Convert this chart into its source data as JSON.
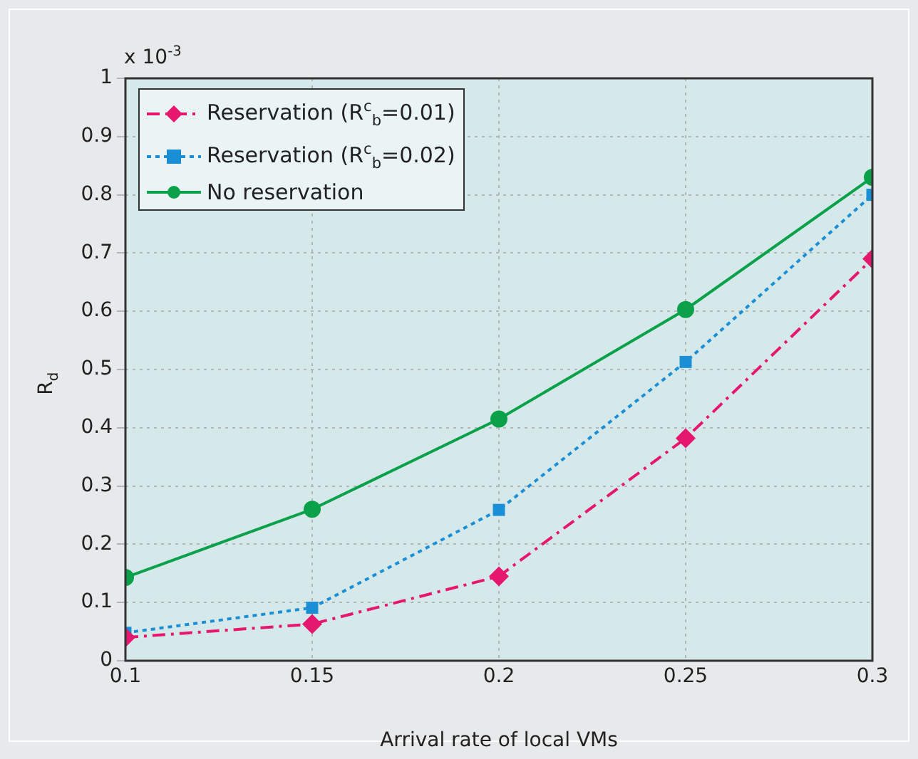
{
  "chart_data": {
    "type": "line",
    "xlabel": "Arrival rate of local VMs",
    "ylabel": "R$_{d}$",
    "annotations": [
      "x 10$^{-3}$"
    ],
    "x": [
      0.1,
      0.15,
      0.2,
      0.25,
      0.3
    ],
    "series": [
      {
        "name": "Reservation (R$^{c}$$_{b}$=0.01)",
        "color": "#e6176f",
        "marker": "diamond",
        "line_style": "dashed",
        "values": [
          0.04,
          0.063,
          0.145,
          0.382,
          0.69
        ]
      },
      {
        "name": "Reservation (R$^{c}$$_{b}$=0.02)",
        "color": "#1a8fd6",
        "marker": "square",
        "line_style": "dotted",
        "values": [
          0.048,
          0.091,
          0.259,
          0.513,
          0.8
        ]
      },
      {
        "name": "No reservation",
        "color": "#0aa14a",
        "marker": "circle",
        "line_style": "solid",
        "values": [
          0.143,
          0.26,
          0.415,
          0.603,
          0.83
        ]
      }
    ],
    "xlim": [
      0.1,
      0.3
    ],
    "xticks": [
      0.1,
      0.15,
      0.2,
      0.25,
      0.3
    ],
    "ylim": [
      0,
      1
    ],
    "yticks": [
      0,
      0.1,
      0.2,
      0.3,
      0.4,
      0.5,
      0.6,
      0.7,
      0.8,
      0.9,
      1
    ],
    "grid": true,
    "legend": "top left"
  }
}
